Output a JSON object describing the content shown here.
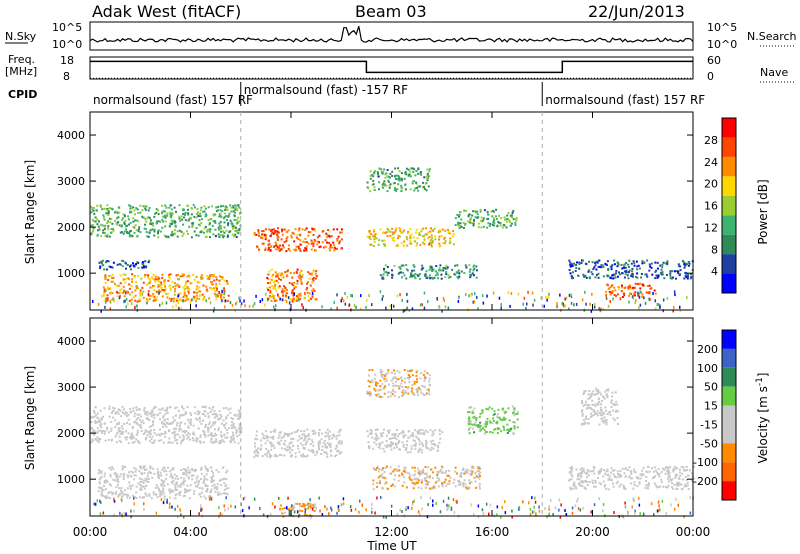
{
  "header": {
    "station": "Adak West (fitACF)",
    "beam": "Beam 03",
    "date": "22/Jun/2013"
  },
  "strip_labels": {
    "nsky": "N.Sky",
    "nsky_ticks": [
      "10^5",
      "10^0"
    ],
    "nsearch": "N.Search",
    "nsearch_ticks": [
      "10^5",
      "10^0"
    ],
    "freq": "Freq.",
    "freq_unit": "[MHz]",
    "freq_ticks": [
      "18",
      "8"
    ],
    "nave": "Nave",
    "nave_ticks": [
      "60",
      "0"
    ],
    "cpid": "CPID"
  },
  "cpid_segments": [
    {
      "label": "normalsound (fast) 157 RF",
      "start_h": 0,
      "end_h": 6
    },
    {
      "label": "normalsound (fast) -157 RF",
      "start_h": 6,
      "end_h": 18
    },
    {
      "label": "normalsound (fast) 157 RF",
      "start_h": 18,
      "end_h": 24
    }
  ],
  "colors": {
    "power_scale": [
      "#0000ff",
      "#1e3fa0",
      "#2e8b57",
      "#3cb371",
      "#9acd32",
      "#ffd700",
      "#ff8c00",
      "#ff4500",
      "#ff0000"
    ],
    "velocity_scale": [
      "#0000ff",
      "#3c64c8",
      "#2e8b57",
      "#66cc44",
      "#c8c8c8",
      "#c8c8c8",
      "#ff8c00",
      "#ff6600",
      "#ff0000"
    ],
    "ground_scatter": "#c8c8c8"
  },
  "chart_data": [
    {
      "type": "line",
      "name": "nsky-nsearch",
      "xlim": [
        0,
        24
      ],
      "yscale": "log",
      "ylim": [
        1,
        100000
      ]
    },
    {
      "type": "line",
      "name": "frequency-nave",
      "x": [
        0,
        11,
        11,
        18.8,
        18.8,
        24
      ],
      "freq_mhz": [
        16,
        16,
        11,
        11,
        16,
        16
      ],
      "nave": [
        2,
        2,
        2,
        2,
        2,
        2
      ],
      "ylim_freq": [
        8,
        18
      ],
      "ylim_nave": [
        0,
        60
      ]
    },
    {
      "type": "heatmap",
      "name": "power",
      "xlabel": "",
      "ylabel": "Slant Range [km]",
      "x_ticks": [
        "00:00",
        "04:00",
        "08:00",
        "12:00",
        "16:00",
        "20:00",
        "00:00"
      ],
      "xlim": [
        0,
        24
      ],
      "ylim": [
        200,
        4500
      ],
      "y_ticks": [
        1000,
        2000,
        3000,
        4000
      ],
      "colorbar_label": "Power [dB]",
      "colorbar_ticks": [
        4,
        8,
        12,
        16,
        20,
        24,
        28
      ],
      "colorbar_range": [
        0,
        32
      ],
      "bands": [
        {
          "x": [
            0.3,
            2.5
          ],
          "y": [
            1100,
            1300
          ],
          "level": 6
        },
        {
          "x": [
            0.5,
            5.5
          ],
          "y": [
            400,
            1000
          ],
          "level": 22
        },
        {
          "x": [
            0,
            6
          ],
          "y": [
            1800,
            2500
          ],
          "level": 12
        },
        {
          "x": [
            6.5,
            10
          ],
          "y": [
            1500,
            2000
          ],
          "level": 26
        },
        {
          "x": [
            7,
            9
          ],
          "y": [
            400,
            1100
          ],
          "level": 24
        },
        {
          "x": [
            11,
            14.5
          ],
          "y": [
            1600,
            2000
          ],
          "level": 20
        },
        {
          "x": [
            14.5,
            17
          ],
          "y": [
            2000,
            2400
          ],
          "level": 12
        },
        {
          "x": [
            11.5,
            15.5
          ],
          "y": [
            900,
            1200
          ],
          "level": 10
        },
        {
          "x": [
            11,
            13.5
          ],
          "y": [
            2800,
            3300
          ],
          "level": 12
        },
        {
          "x": [
            19,
            24
          ],
          "y": [
            900,
            1300
          ],
          "level": 6
        },
        {
          "x": [
            20.5,
            22.5
          ],
          "y": [
            500,
            800
          ],
          "level": 26
        }
      ]
    },
    {
      "type": "heatmap",
      "name": "velocity",
      "xlabel": "Time UT",
      "ylabel": "Slant Range [km]",
      "x_ticks": [
        "00:00",
        "04:00",
        "08:00",
        "12:00",
        "16:00",
        "20:00",
        "00:00"
      ],
      "xlim": [
        0,
        24
      ],
      "ylim": [
        200,
        4500
      ],
      "y_ticks": [
        1000,
        2000,
        3000,
        4000
      ],
      "colorbar_label": "Velocity [m s^-1]",
      "colorbar_ticks": [
        "200",
        "100",
        "50",
        "15",
        "-15",
        "-50",
        "-100",
        "-200"
      ],
      "bands": [
        {
          "x": [
            0,
            6
          ],
          "y": [
            1800,
            2600
          ],
          "velocity": 0
        },
        {
          "x": [
            0.3,
            5.5
          ],
          "y": [
            600,
            1300
          ],
          "velocity": 0
        },
        {
          "x": [
            6.5,
            10
          ],
          "y": [
            1500,
            2100
          ],
          "velocity": 0
        },
        {
          "x": [
            7.5,
            9
          ],
          "y": [
            200,
            500
          ],
          "velocity": -80
        },
        {
          "x": [
            11,
            14
          ],
          "y": [
            1600,
            2100
          ],
          "velocity": 0
        },
        {
          "x": [
            11.2,
            15.5
          ],
          "y": [
            800,
            1300
          ],
          "velocity": -60
        },
        {
          "x": [
            11,
            13.5
          ],
          "y": [
            2800,
            3400
          ],
          "velocity": -60
        },
        {
          "x": [
            15,
            17
          ],
          "y": [
            2000,
            2600
          ],
          "velocity": 40
        },
        {
          "x": [
            19,
            24
          ],
          "y": [
            800,
            1300
          ],
          "velocity": 0
        },
        {
          "x": [
            19.5,
            21
          ],
          "y": [
            2200,
            3000
          ],
          "velocity": 0
        }
      ]
    }
  ]
}
